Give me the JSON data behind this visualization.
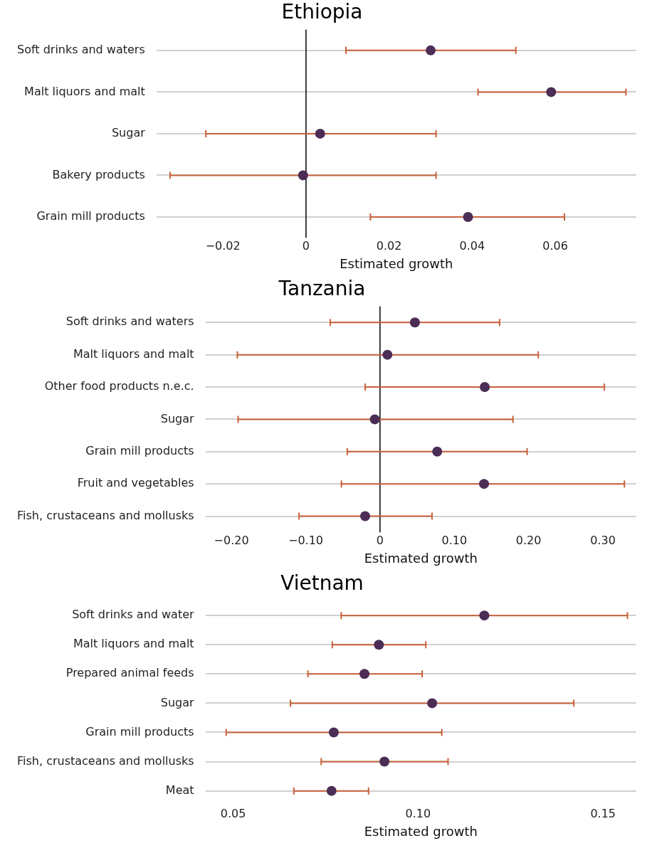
{
  "chart_data": [
    {
      "type": "scatter",
      "orientation": "horizontal",
      "title": "Ethiopia",
      "xlabel": "Estimated growth",
      "marker": "circle",
      "color": "#4b2d55",
      "grid": "y",
      "categories": [
        "Soft drinks and waters",
        "Malt liquors and malt",
        "Sugar",
        "Bakery products",
        "Grain mill products"
      ],
      "values": [
        0.03,
        0.059,
        0.0034,
        -0.0007,
        0.039
      ],
      "errors": [
        [
          0.0096,
          0.0505
        ],
        [
          0.0414,
          0.077
        ],
        [
          -0.0241,
          0.0313
        ],
        [
          -0.0327,
          0.0313
        ],
        [
          0.0155,
          0.0622
        ]
      ],
      "xlim": [
        -0.036,
        0.0795
      ],
      "xticks": [
        {
          "value": -0.02,
          "label": "−0.02"
        },
        0,
        0.02,
        0.04,
        0.06
      ],
      "ref_lines": [
        {
          "axis": "x",
          "value": 0,
          "color": "#000000"
        }
      ]
    },
    {
      "type": "scatter",
      "orientation": "horizontal",
      "title": "Tanzania",
      "xlabel": "Estimated growth",
      "marker": "circle",
      "color": "#4b2d55",
      "grid": "y",
      "categories": [
        "Soft drinks and waters",
        "Malt liquors and malt",
        "Other food products n.e.c.",
        "Sugar",
        "Grain mill products",
        "Fruit and vegetables",
        "Fish, crustaceans and mollusks"
      ],
      "values": [
        0.047,
        0.01,
        0.141,
        -0.007,
        0.077,
        0.14,
        -0.02
      ],
      "errors": [
        [
          -0.067,
          0.161
        ],
        [
          -0.192,
          0.213
        ],
        [
          -0.02,
          0.302
        ],
        [
          -0.191,
          0.179
        ],
        [
          -0.044,
          0.198
        ],
        [
          -0.052,
          0.329
        ],
        [
          -0.109,
          0.07
        ]
      ],
      "xlim": [
        -0.235,
        0.345
      ],
      "xticks": [
        {
          "value": -0.2,
          "label": "−0.20"
        },
        {
          "value": -0.1,
          "label": "−0.10"
        },
        0,
        {
          "value": 0.1,
          "label": "0.10"
        },
        {
          "value": 0.2,
          "label": "0.20"
        },
        {
          "value": 0.3,
          "label": "0.30"
        }
      ],
      "ref_lines": [
        {
          "axis": "x",
          "value": 0,
          "color": "#000000"
        }
      ]
    },
    {
      "type": "scatter",
      "orientation": "horizontal",
      "title": "Vietnam",
      "xlabel": "Estimated growth",
      "marker": "circle",
      "color": "#4b2d55",
      "grid": "y",
      "categories": [
        "Soft drinks and water",
        "Malt liquors and malt",
        "Prepared animal feeds",
        "Sugar",
        "Grain mill products",
        "Fish, crustaceans and mollusks",
        "Meat"
      ],
      "values": [
        0.1179,
        0.0894,
        0.0855,
        0.1038,
        0.0772,
        0.0909,
        0.0766
      ],
      "errors": [
        [
          0.0792,
          0.1566
        ],
        [
          0.0768,
          0.1021
        ],
        [
          0.0702,
          0.1011
        ],
        [
          0.0655,
          0.1421
        ],
        [
          0.0481,
          0.1064
        ],
        [
          0.0738,
          0.1081
        ],
        [
          0.0664,
          0.0866
        ]
      ],
      "xlim": [
        0.0425,
        0.159
      ],
      "xticks": [
        0.05,
        {
          "value": 0.1,
          "label": "0.10"
        },
        0.15
      ]
    }
  ]
}
